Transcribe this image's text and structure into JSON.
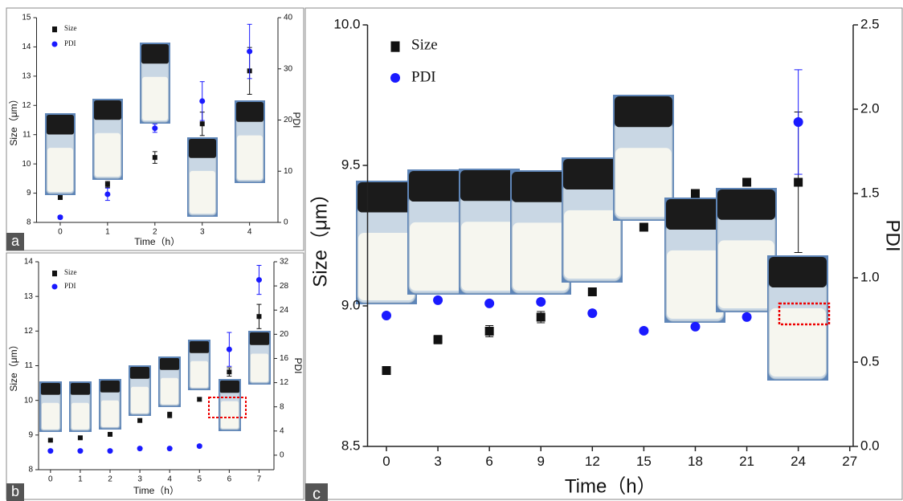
{
  "chart_data": [
    {
      "type": "scatter",
      "panel": "a",
      "x_label": "Time（h）",
      "y_label": "Size（μm）",
      "y2_label": "PDI",
      "x": [
        0,
        1,
        2,
        3,
        4
      ],
      "xlim": [
        -0.5,
        4.6
      ],
      "xticks": [
        0,
        1,
        2,
        3,
        4
      ],
      "ylim": [
        8,
        15
      ],
      "yticks": [
        8,
        9,
        10,
        11,
        12,
        13,
        14,
        15
      ],
      "y2lim": [
        0,
        40
      ],
      "y2ticks": [
        0,
        10,
        20,
        30,
        40
      ],
      "series": [
        {
          "name": "Size",
          "color": "#111111",
          "marker": "square",
          "values": [
            8.85,
            9.3,
            10.22,
            11.37,
            13.18
          ],
          "errors": [
            0.05,
            0.1,
            0.2,
            0.4,
            0.8
          ]
        },
        {
          "name": "PDI",
          "color": "#1a1aff",
          "marker": "circle",
          "axis": "y2",
          "values": [
            1,
            5.5,
            18.4,
            23.7,
            33.4
          ],
          "errors": [
            0.3,
            1.2,
            0.8,
            3.8,
            5.3
          ]
        }
      ]
    },
    {
      "type": "scatter",
      "panel": "b",
      "x_label": "Time（h）",
      "y_label": "Size（μm）",
      "y2_label": "PDI",
      "x": [
        0,
        1,
        2,
        3,
        4,
        5,
        6,
        7
      ],
      "xlim": [
        -0.4,
        7.5
      ],
      "xticks": [
        0,
        1,
        2,
        3,
        4,
        5,
        6,
        7
      ],
      "ylim": [
        8,
        14
      ],
      "yticks": [
        8,
        9,
        10,
        11,
        12,
        13,
        14
      ],
      "y2lim": [
        -2.4,
        32
      ],
      "y2ticks": [
        0,
        4,
        8,
        12,
        16,
        20,
        24,
        28,
        32
      ],
      "series": [
        {
          "name": "Size",
          "color": "#111111",
          "marker": "square",
          "values": [
            8.85,
            8.92,
            9.02,
            9.42,
            9.58,
            10.03,
            10.82,
            12.42
          ],
          "errors": [
            0.03,
            0.03,
            0.03,
            0.05,
            0.08,
            0.05,
            0.12,
            0.35
          ]
        },
        {
          "name": "PDI",
          "color": "#1a1aff",
          "marker": "circle",
          "axis": "y2",
          "values": [
            0.7,
            0.7,
            0.7,
            1.1,
            1.1,
            1.5,
            17.5,
            29
          ],
          "errors": [
            0.1,
            0.1,
            0.1,
            0.1,
            0.1,
            0.2,
            2.8,
            2.4
          ]
        }
      ]
    },
    {
      "type": "scatter",
      "panel": "c",
      "x_label": "Time（h）",
      "y_label": "Size（μm）",
      "y2_label": "PDI",
      "x": [
        0,
        3,
        6,
        9,
        12,
        15,
        18,
        21,
        24
      ],
      "xlim": [
        -1.1,
        27.2
      ],
      "xticks": [
        0,
        3,
        6,
        9,
        12,
        15,
        18,
        21,
        24,
        27
      ],
      "ylim": [
        8.5,
        10
      ],
      "yticks": [
        {
          "value": 8.5,
          "label": "8.5"
        },
        {
          "value": 9,
          "label": "9.0"
        },
        9.5,
        {
          "value": 10,
          "label": "10.0"
        }
      ],
      "y2lim": [
        0,
        2.5
      ],
      "y2ticks": [
        {
          "value": 0,
          "label": "0.0"
        },
        0.5,
        {
          "value": 1,
          "label": "1.0"
        },
        1.5,
        {
          "value": 2,
          "label": "2.0"
        },
        2.5
      ],
      "series": [
        {
          "name": "Size",
          "color": "#111111",
          "marker": "square",
          "values": [
            8.77,
            8.88,
            8.91,
            8.96,
            9.05,
            9.28,
            9.4,
            9.44,
            9.44
          ],
          "errors": [
            0.01,
            0.015,
            0.02,
            0.02,
            0.01,
            0.01,
            0.01,
            0.01,
            0.25
          ]
        },
        {
          "name": "PDI",
          "color": "#1a1aff",
          "marker": "circle",
          "axis": "y2",
          "values": [
            0.776,
            0.867,
            0.848,
            0.857,
            0.79,
            0.686,
            0.71,
            0.767,
            1.924
          ],
          "errors": [
            0.01,
            0.01,
            0.01,
            0.01,
            0.01,
            0.01,
            0.01,
            0.01,
            0.31
          ]
        }
      ]
    }
  ]
}
